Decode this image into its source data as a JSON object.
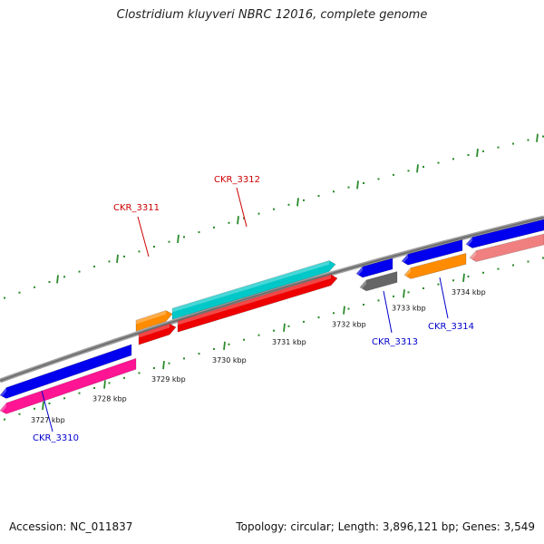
{
  "title": "Clostridium kluyveri NBRC 12016, complete genome",
  "footer": {
    "accession": "Accession: NC_011837",
    "stats": "Topology: circular; Length: 3,896,121 bp; Genes: 3,549"
  },
  "colors": {
    "backbone": "#888888",
    "tick_marks": "#2a8a2a",
    "label_plus": "#cc0000",
    "label_minus": "#0000cc"
  },
  "scale": {
    "unit": "kbp",
    "labels": [
      "3727 kbp",
      "3728 kbp",
      "3729 kbp",
      "3730 kbp",
      "3731 kbp",
      "3732 kbp",
      "3733 kbp",
      "3734 kbp"
    ]
  },
  "genes": [
    {
      "label": "CKR_3310",
      "color": "#0000ee",
      "strand": "minus"
    },
    {
      "label": "CKR_3311",
      "color": "#ff8c00",
      "strand": "plus"
    },
    {
      "label": "CKR_3312",
      "color": "#00c8c8",
      "strand": "plus"
    },
    {
      "label": "CKR_3313",
      "color": "#666666",
      "strand": "minus"
    },
    {
      "label": "CKR_3314",
      "color": "#ff8c00",
      "strand": "minus"
    }
  ],
  "other_features": [
    {
      "color": "#ff1493",
      "strand": "minus"
    },
    {
      "color": "#ee0000",
      "strand": "plus"
    },
    {
      "color": "#0000ee",
      "strand": "minus"
    },
    {
      "color": "#0000ee",
      "strand": "minus"
    },
    {
      "color": "#0000ee",
      "strand": "minus"
    },
    {
      "color": "#f08080",
      "strand": "minus"
    }
  ]
}
